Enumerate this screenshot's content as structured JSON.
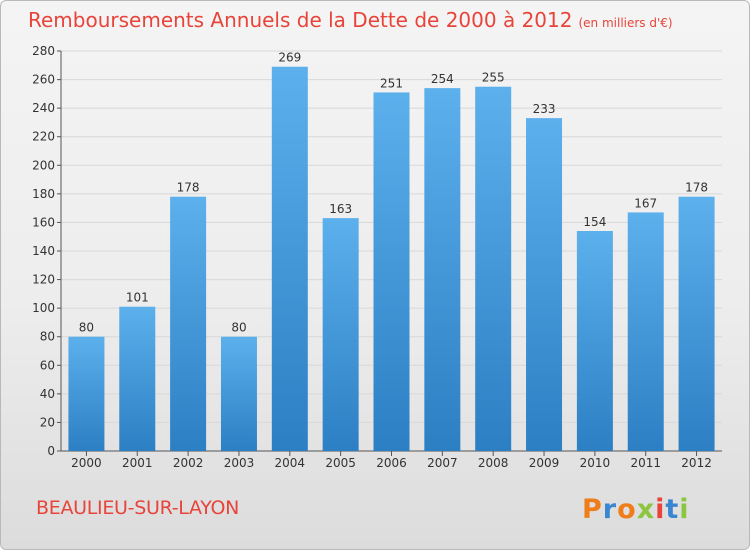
{
  "header": {
    "title": "Remboursements Annuels de la Dette de 2000 à 2012",
    "unit": "(en milliers d'€)"
  },
  "footer": {
    "city": "BEAULIEU-SUR-LAYON",
    "brand": "Proxiti"
  },
  "colors": {
    "bar_light": "#5cb0ec",
    "bar_dark": "#2c7fc3",
    "title": "#e8443a",
    "grid": "#d8d8d8"
  },
  "chart_data": {
    "type": "bar",
    "title": "Remboursements Annuels de la Dette de 2000 à 2012",
    "subtitle": "(en milliers d'€)",
    "categories": [
      "2000",
      "2001",
      "2002",
      "2003",
      "2004",
      "2005",
      "2006",
      "2007",
      "2008",
      "2009",
      "2010",
      "2011",
      "2012"
    ],
    "values": [
      80,
      101,
      178,
      80,
      269,
      163,
      251,
      254,
      255,
      233,
      154,
      167,
      178
    ],
    "ylim": [
      0,
      280
    ],
    "yticks": [
      0,
      20,
      40,
      60,
      80,
      100,
      120,
      140,
      160,
      180,
      200,
      220,
      240,
      260,
      280
    ],
    "grid": true,
    "data_labels": true
  }
}
